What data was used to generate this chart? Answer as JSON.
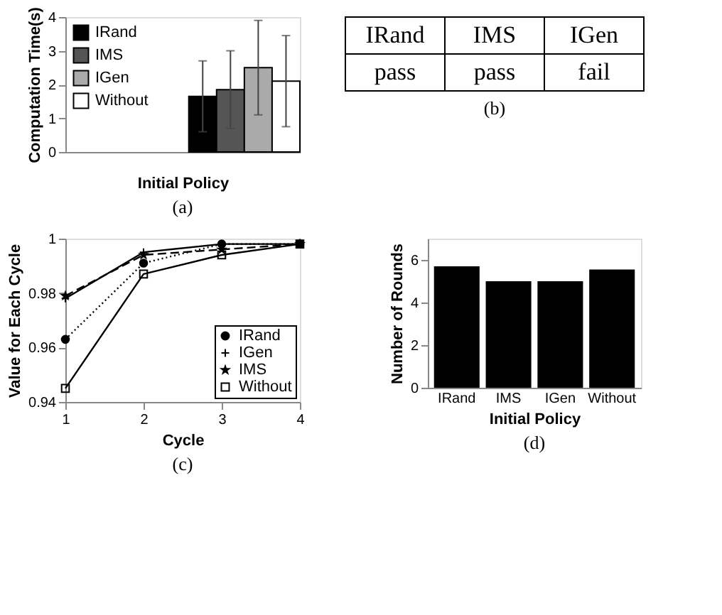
{
  "chart_data": [
    {
      "type": "bar",
      "ylabel": "Computation Time(s)",
      "xlabel": "Initial Policy",
      "categories": [
        null
      ],
      "ylim": [
        0,
        4
      ],
      "yticks": [
        0,
        1,
        2,
        3,
        4
      ],
      "legend": "top left",
      "annotations": [
        "(a)"
      ],
      "series": [
        {
          "name": "IRand",
          "color": "#000000",
          "values": [
            1.65
          ],
          "errors": [
            1.05
          ]
        },
        {
          "name": "IMS",
          "color": "#555555",
          "values": [
            1.85
          ],
          "errors": [
            1.15
          ]
        },
        {
          "name": "IGen",
          "color": "#aaaaaa",
          "values": [
            2.5
          ],
          "errors": [
            1.4
          ]
        },
        {
          "name": "Without",
          "color": "#ffffff",
          "values": [
            2.1
          ],
          "errors": [
            1.35
          ]
        }
      ]
    },
    {
      "type": "other",
      "categories": [
        "IRand",
        "IMS",
        "IGen"
      ],
      "value_labels": [
        "pass",
        "pass",
        "fail"
      ],
      "annotations": [
        "(b)"
      ]
    },
    {
      "type": "line",
      "xlabel": "Cycle",
      "ylabel": "Value for Each Cycle",
      "x": [
        1,
        2,
        3,
        4
      ],
      "xlim": [
        1,
        4
      ],
      "xticks": [
        1,
        2,
        3,
        4
      ],
      "ylim": [
        0.94,
        1
      ],
      "yticks": [
        0.94,
        0.96,
        0.98,
        1
      ],
      "legend": "bottom right",
      "annotations": [
        "(c)"
      ],
      "series": [
        {
          "name": "IRand",
          "color": "#000000",
          "marker": "circle",
          "line_style": "dotted",
          "values": [
            0.963,
            0.991,
            0.998,
            0.998
          ]
        },
        {
          "name": "IGen",
          "color": "#000000",
          "marker": "cross",
          "line_style": "solid",
          "values": [
            0.978,
            0.995,
            0.998,
            0.998
          ]
        },
        {
          "name": "IMS",
          "color": "#000000",
          "marker": "star",
          "line_style": "dashed",
          "values": [
            0.979,
            0.994,
            0.996,
            0.998
          ]
        },
        {
          "name": "Without",
          "color": "#000000",
          "marker": "square",
          "line_style": "solid",
          "values": [
            0.945,
            0.987,
            0.994,
            0.998
          ]
        }
      ]
    },
    {
      "type": "bar",
      "xlabel": "Initial Policy",
      "ylabel": "Number of Rounds",
      "categories": [
        "IRand",
        "IMS",
        "IGen",
        "Without"
      ],
      "values": [
        5.7,
        5.0,
        5.0,
        5.55
      ],
      "color": "#000000",
      "ylim": [
        0,
        7
      ],
      "yticks": [
        0,
        2,
        4,
        6
      ],
      "annotations": [
        "(d)"
      ]
    }
  ]
}
